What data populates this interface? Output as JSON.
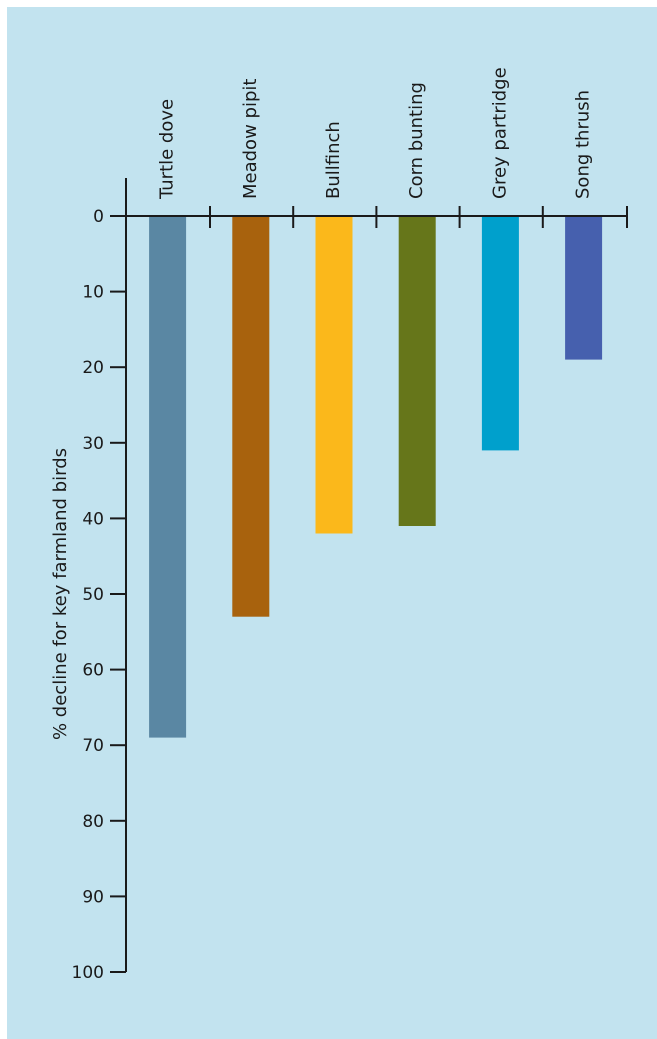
{
  "chart_data": {
    "type": "bar",
    "orientation": "vertical-descending",
    "categories": [
      "Turtle dove",
      "Meadow pipit",
      "Bullfinch",
      "Corn bunting",
      "Grey partridge",
      "Song thrush"
    ],
    "values": [
      69,
      53,
      42,
      41,
      31,
      19
    ],
    "colors": [
      "#5a87a3",
      "#a8620d",
      "#fbb81b",
      "#66761a",
      "#00a0cc",
      "#4660ae"
    ],
    "ylabel": "% decline for key farmland birds",
    "ylim": [
      0,
      100
    ],
    "yticks": [
      "0",
      "10",
      "20",
      "30",
      "40",
      "50",
      "60",
      "70",
      "80",
      "90",
      "100"
    ],
    "xaxis_position": "top",
    "grid": false,
    "legend": "none",
    "background": "#c2e3ef"
  }
}
